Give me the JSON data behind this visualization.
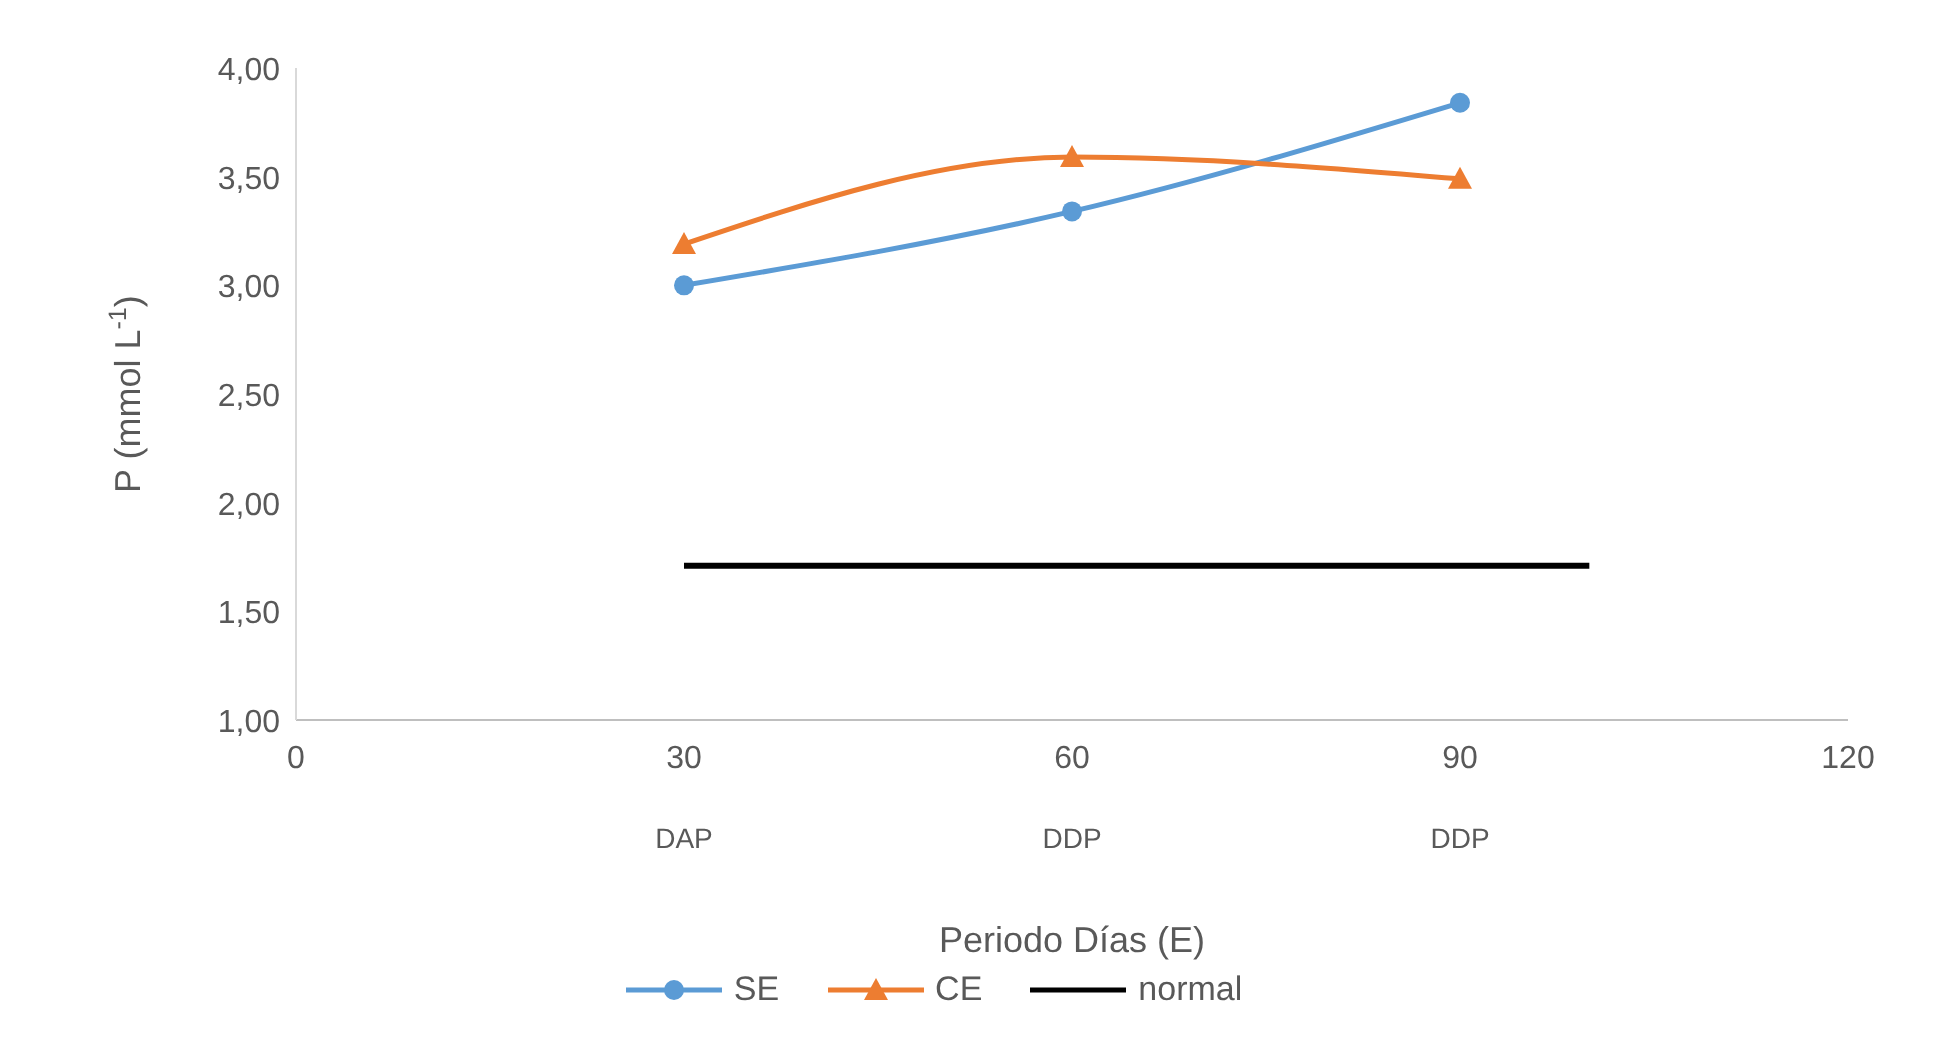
{
  "chart_data": {
    "type": "line",
    "xlabel": "Periodo Días (E)",
    "ylabel": "P (mmol L$^{-1}$)",
    "xlim": [
      0,
      120
    ],
    "xticks": [
      0,
      30,
      60,
      90,
      120
    ],
    "ylim": [
      1,
      4
    ],
    "yticks": [
      {
        "value": 1,
        "label": "1,00"
      },
      {
        "value": 1.5,
        "label": "1,50"
      },
      {
        "value": 2,
        "label": "2,00"
      },
      {
        "value": 2.5,
        "label": "2,50"
      },
      {
        "value": 3,
        "label": "3,00"
      },
      {
        "value": 3.5,
        "label": "3,50"
      },
      {
        "value": 4,
        "label": "4,00"
      }
    ],
    "x": [
      30,
      60,
      90
    ],
    "series": [
      {
        "name": "SE",
        "color": "#5b9bd5",
        "values": [
          3.0,
          3.34,
          3.84
        ],
        "marker": "circle"
      },
      {
        "name": "CE",
        "color": "#ed7d31",
        "values": [
          3.19,
          3.59,
          3.49
        ],
        "marker": "triangle"
      },
      {
        "name": "normal",
        "color": "#000000",
        "x": [
          30,
          100
        ],
        "values": [
          1.71,
          1.71
        ],
        "marker": "none"
      }
    ],
    "annotations": [
      "DAP",
      "DDP",
      "DDP"
    ],
    "grid": false,
    "legend": "bottom"
  }
}
